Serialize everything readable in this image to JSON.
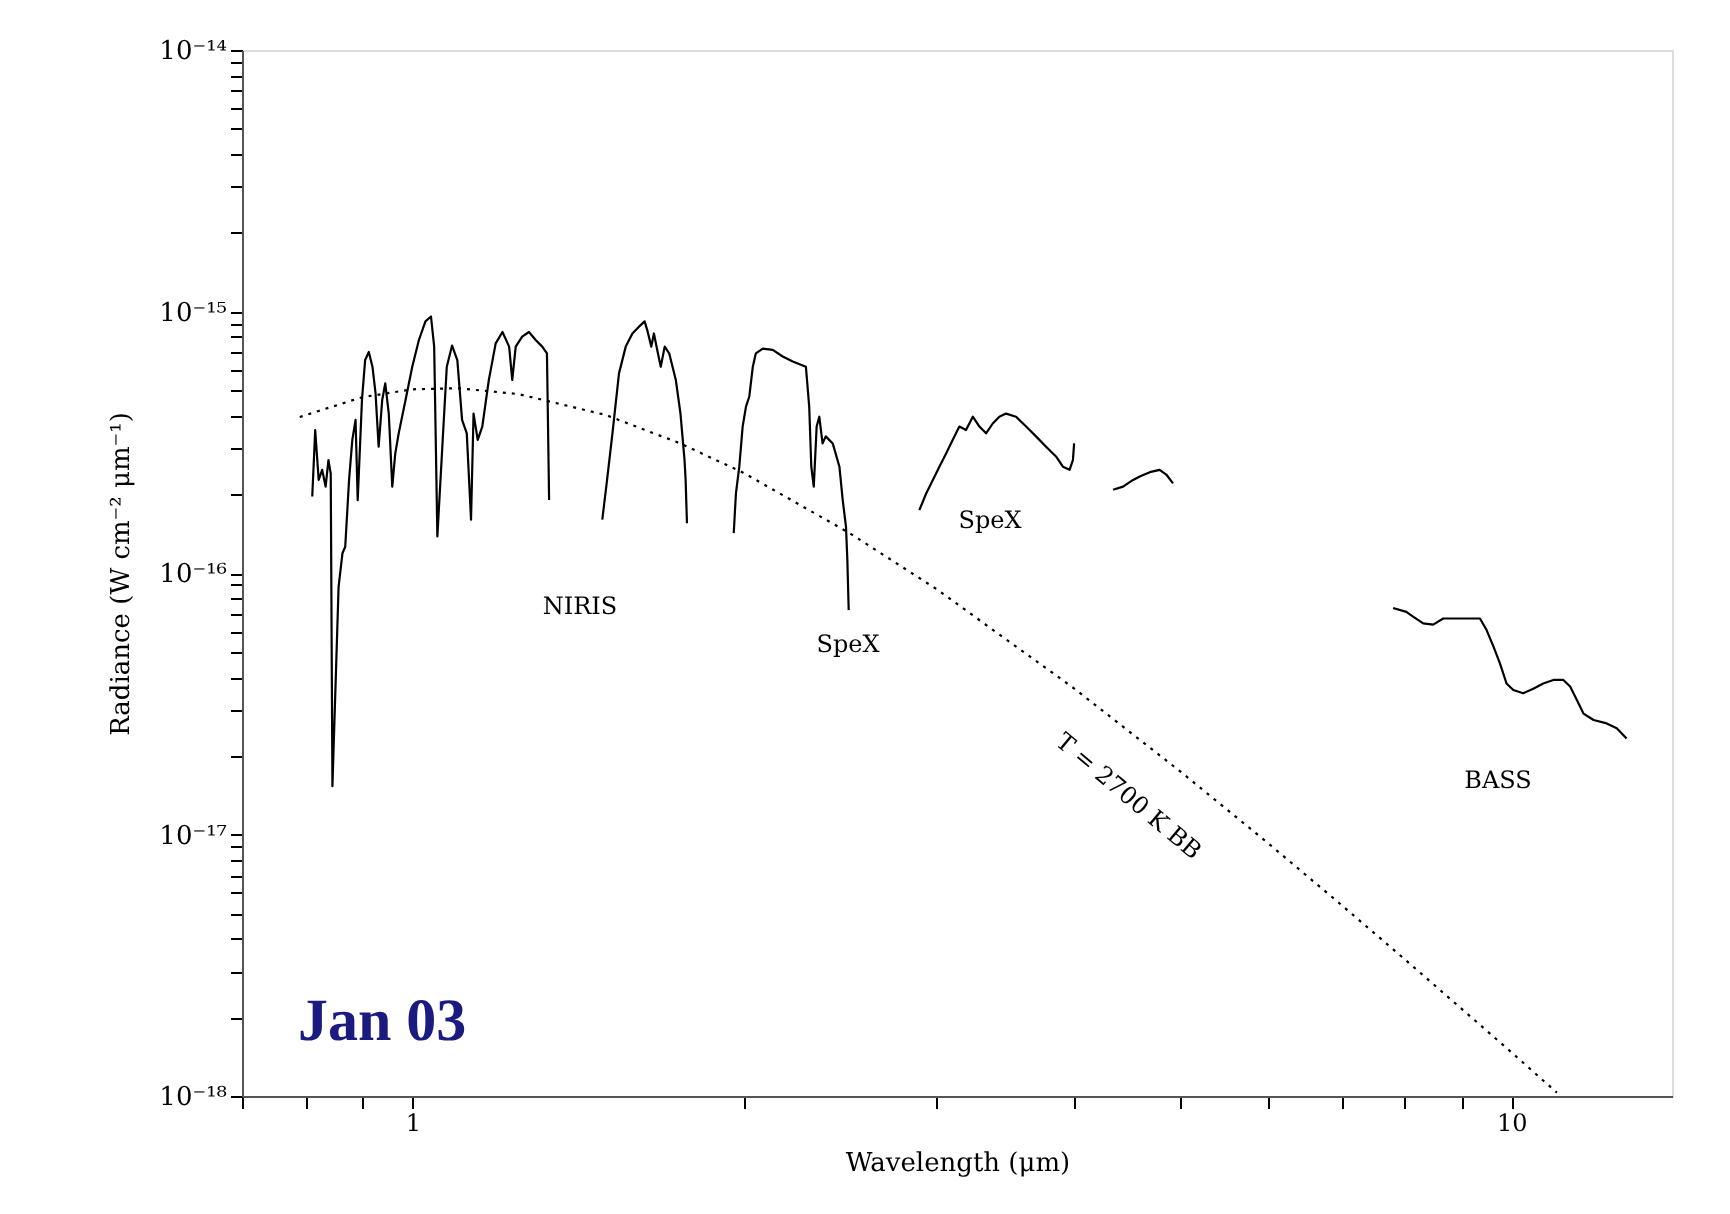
{
  "chart_data": {
    "type": "line",
    "xlabel": "Wavelength (μm)",
    "ylabel": "Radiance (W cm⁻² μm⁻¹)",
    "log": "xy",
    "grid": false,
    "marker": "none",
    "xlim": [
      0.7,
      14
    ],
    "ylim": [
      1e-18,
      1e-14
    ],
    "xticks": [
      {
        "value": 0.7,
        "label": null
      },
      {
        "value": 0.8,
        "label": null
      },
      {
        "value": 0.9,
        "label": null
      },
      1,
      {
        "value": 2,
        "label": null
      },
      {
        "value": 3,
        "label": null
      },
      {
        "value": 4,
        "label": null
      },
      {
        "value": 5,
        "label": null
      },
      {
        "value": 6,
        "label": null
      },
      {
        "value": 7,
        "label": null
      },
      {
        "value": 8,
        "label": null
      },
      {
        "value": 9,
        "label": null
      },
      10
    ],
    "yticks": [
      {
        "value": 1e-18,
        "label": "10⁻¹⁸"
      },
      {
        "value": 2e-18,
        "label": null
      },
      {
        "value": 3e-18,
        "label": null
      },
      {
        "value": 4e-18,
        "label": null
      },
      {
        "value": 5e-18,
        "label": null
      },
      {
        "value": 6e-18,
        "label": null
      },
      {
        "value": 7e-18,
        "label": null
      },
      {
        "value": 8e-18,
        "label": null
      },
      {
        "value": 9e-18,
        "label": null
      },
      {
        "value": 1e-17,
        "label": "10⁻¹⁷"
      },
      {
        "value": 2e-17,
        "label": null
      },
      {
        "value": 3e-17,
        "label": null
      },
      {
        "value": 4e-17,
        "label": null
      },
      {
        "value": 5e-17,
        "label": null
      },
      {
        "value": 6e-17,
        "label": null
      },
      {
        "value": 7e-17,
        "label": null
      },
      {
        "value": 8e-17,
        "label": null
      },
      {
        "value": 9e-17,
        "label": null
      },
      {
        "value": 1e-16,
        "label": "10⁻¹⁶"
      },
      {
        "value": 2e-16,
        "label": null
      },
      {
        "value": 3e-16,
        "label": null
      },
      {
        "value": 4e-16,
        "label": null
      },
      {
        "value": 5e-16,
        "label": null
      },
      {
        "value": 6e-16,
        "label": null
      },
      {
        "value": 7e-16,
        "label": null
      },
      {
        "value": 8e-16,
        "label": null
      },
      {
        "value": 9e-16,
        "label": null
      },
      {
        "value": 1e-15,
        "label": "10⁻¹⁵"
      },
      {
        "value": 2e-15,
        "label": null
      },
      {
        "value": 3e-15,
        "label": null
      },
      {
        "value": 4e-15,
        "label": null
      },
      {
        "value": 5e-15,
        "label": null
      },
      {
        "value": 6e-15,
        "label": null
      },
      {
        "value": 7e-15,
        "label": null
      },
      {
        "value": 8e-15,
        "label": null
      },
      {
        "value": 9e-15,
        "label": null
      },
      {
        "value": 1e-14,
        "label": "10⁻¹⁴"
      }
    ],
    "series": [
      {
        "color": "#000000",
        "x": [
          0.811,
          0.816,
          0.822,
          0.828,
          0.834,
          0.839,
          0.843,
          0.846,
          0.857,
          0.864,
          0.869,
          0.876,
          0.882,
          0.888,
          0.892,
          0.9,
          0.906,
          0.913,
          0.92,
          0.926,
          0.932,
          0.939,
          0.945,
          0.952,
          0.959,
          0.965,
          0.972,
          0.986,
          1.0,
          1.014,
          1.028,
          1.04,
          1.047,
          1.054,
          1.065,
          1.075,
          1.087,
          1.099,
          1.11,
          1.121,
          1.131,
          1.137,
          1.147,
          1.158,
          1.174,
          1.191,
          1.208,
          1.225,
          1.233,
          1.242,
          1.259,
          1.277,
          1.295,
          1.313,
          1.326,
          1.332
        ],
        "values": [
          1.96e-16,
          3.52e-16,
          2.27e-16,
          2.48e-16,
          2.14e-16,
          2.7e-16,
          2.4e-16,
          1.53e-17,
          8.87e-17,
          1.19e-16,
          1.26e-16,
          2.27e-16,
          3.23e-16,
          3.85e-16,
          1.9e-16,
          4.59e-16,
          6.52e-16,
          7e-16,
          6.15e-16,
          4.86e-16,
          3.04e-16,
          4.59e-16,
          5.31e-16,
          4.07e-16,
          2.14e-16,
          2.86e-16,
          3.42e-16,
          4.59e-16,
          6.15e-16,
          7.78e-16,
          9.17e-16,
          9.57e-16,
          7.34e-16,
          1.38e-16,
          3.04e-16,
          6.15e-16,
          7.41e-16,
          6.52e-16,
          3.85e-16,
          3.42e-16,
          1.6e-16,
          4.07e-16,
          3.23e-16,
          3.63e-16,
          5.47e-16,
          7.55e-16,
          8.35e-16,
          7.34e-16,
          5.47e-16,
          7.34e-16,
          8.02e-16,
          8.35e-16,
          7.78e-16,
          7.34e-16,
          6.92e-16,
          1.9e-16
        ]
      },
      {
        "color": "#000000",
        "x": [
          1.489,
          1.504,
          1.521,
          1.542,
          1.564,
          1.586,
          1.608,
          1.627,
          1.636,
          1.65,
          1.659,
          1.673,
          1.683,
          1.697,
          1.713,
          1.737,
          1.754,
          1.769,
          1.773,
          1.778
        ],
        "values": [
          1.6e-16,
          2.27e-16,
          3.42e-16,
          5.8e-16,
          7.34e-16,
          8.24e-16,
          8.75e-16,
          9.17e-16,
          8.49e-16,
          7.34e-16,
          8.24e-16,
          6.92e-16,
          6.15e-16,
          7.34e-16,
          6.92e-16,
          5.47e-16,
          4.07e-16,
          2.7e-16,
          2.27e-16,
          1.55e-16
        ]
      },
      {
        "color": "#000000",
        "x": [
          1.961,
          1.97,
          1.984,
          1.998,
          2.012,
          2.026,
          2.041,
          2.054,
          2.084,
          2.128,
          2.173,
          2.219,
          2.281,
          2.297,
          2.307,
          2.319,
          2.333,
          2.346,
          2.362,
          2.378,
          2.413,
          2.447,
          2.464,
          2.481,
          2.488,
          2.495
        ],
        "values": [
          1.42e-16,
          2.01e-16,
          2.55e-16,
          3.63e-16,
          4.33e-16,
          4.73e-16,
          6.15e-16,
          6.92e-16,
          7.21e-16,
          7.13e-16,
          6.73e-16,
          6.44e-16,
          6.15e-16,
          4.33e-16,
          2.55e-16,
          2.14e-16,
          3.63e-16,
          3.96e-16,
          3.13e-16,
          3.33e-16,
          3.13e-16,
          2.55e-16,
          1.9e-16,
          1.5e-16,
          1.12e-16,
          7.21e-17
        ]
      },
      {
        "color": "#000000",
        "x": [
          2.893,
          2.934,
          2.976,
          3.017,
          3.059,
          3.103,
          3.146,
          3.19,
          3.236,
          3.281,
          3.327,
          3.374,
          3.421,
          3.469,
          3.543,
          3.618,
          3.694,
          3.773,
          3.852,
          3.908,
          3.963,
          3.991,
          4.001
        ],
        "values": [
          1.74e-16,
          2.01e-16,
          2.27e-16,
          2.55e-16,
          2.86e-16,
          3.23e-16,
          3.63e-16,
          3.52e-16,
          3.96e-16,
          3.63e-16,
          3.42e-16,
          3.73e-16,
          3.96e-16,
          4.07e-16,
          3.96e-16,
          3.63e-16,
          3.33e-16,
          3.04e-16,
          2.79e-16,
          2.55e-16,
          2.48e-16,
          2.7e-16,
          3.13e-16
        ]
      },
      {
        "color": "#000000",
        "x": [
          4.341,
          4.433,
          4.527,
          4.591,
          4.688,
          4.786,
          4.853,
          4.922
        ],
        "values": [
          2.08e-16,
          2.14e-16,
          2.27e-16,
          2.34e-16,
          2.43e-16,
          2.48e-16,
          2.38e-16,
          2.2e-16
        ]
      },
      {
        "color": "#000000",
        "x": [
          7.805,
          8.025,
          8.139,
          8.313,
          8.489,
          8.669,
          8.976,
          9.363,
          9.494,
          9.63,
          9.763,
          9.899,
          10.04,
          10.25,
          10.47,
          10.69,
          10.92,
          11.15,
          11.31,
          11.47,
          11.63,
          11.88,
          12.21,
          12.47,
          12.73
        ],
        "values": [
          7.35e-17,
          7.1e-17,
          6.81e-17,
          6.42e-17,
          6.35e-17,
          6.7e-17,
          6.7e-17,
          6.7e-17,
          6.05e-17,
          5.24e-17,
          4.51e-17,
          3.78e-17,
          3.57e-17,
          3.47e-17,
          3.61e-17,
          3.78e-17,
          3.9e-17,
          3.9e-17,
          3.68e-17,
          3.27e-17,
          2.9e-17,
          2.74e-17,
          2.66e-17,
          2.55e-17,
          2.33e-17
        ]
      },
      {
        "name": "T = 2700 K BB",
        "color": "#000000",
        "line_style": "dotted",
        "x": [
          0.79,
          0.9,
          1.0,
          1.1,
          1.25,
          1.5,
          1.75,
          2,
          2.5,
          3,
          4,
          5,
          6,
          7,
          8,
          10,
          11
        ],
        "values": [
          3.95e-16,
          4.7e-16,
          5.04e-16,
          5.09e-16,
          4.83e-16,
          4.02e-16,
          3.14e-16,
          2.42e-16,
          1.42e-16,
          8.67e-17,
          3.62e-17,
          1.74e-17,
          9.3e-18,
          5.39e-18,
          3.33e-18,
          1.47e-18,
          1.03e-18
        ]
      }
    ],
    "annotations": [
      "NIRIS",
      "SpeX",
      "SpeX",
      "BASS",
      "Jan 03"
    ]
  }
}
